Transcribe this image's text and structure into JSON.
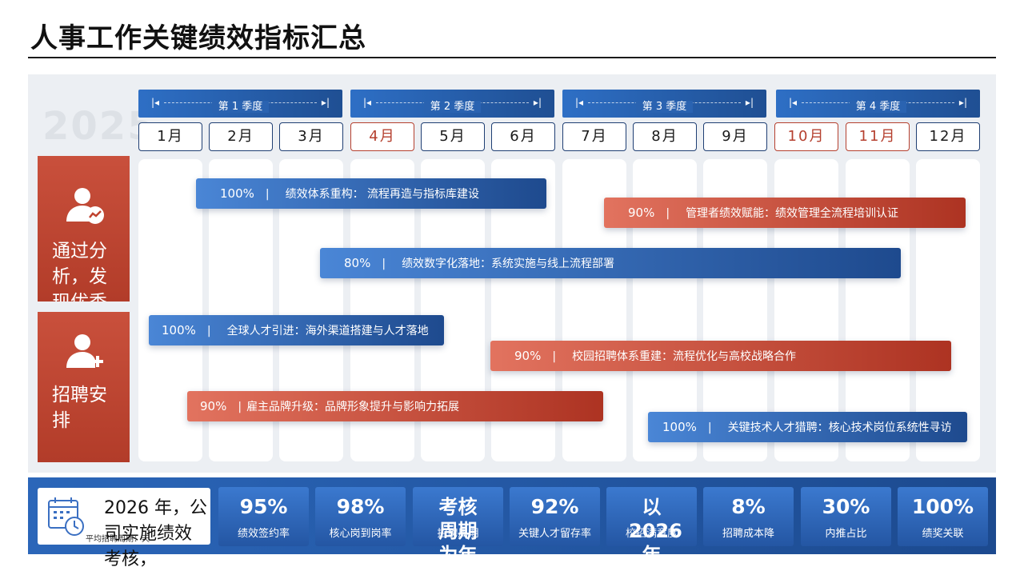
{
  "page_title": "人事工作关键绩效指标汇总",
  "year": "2025",
  "quarters": [
    "第 1 季度",
    "第 2 季度",
    "第 3 季度",
    "第 4 季度"
  ],
  "months": [
    "1月",
    "2月",
    "3月",
    "4月",
    "5月",
    "6月",
    "7月",
    "8月",
    "9月",
    "10月",
    "11月",
    "12月"
  ],
  "colors": {
    "blue": "#1f4f93",
    "red": "#b23c29",
    "red_month": "#b5402f"
  },
  "side_panels": {
    "performance": {
      "icon": "user-chart-icon",
      "text": "通过分析，发现优秀部门在创新能力和客户满意度方面表现突出，制"
    },
    "recruit": {
      "icon": "user-plus-icon",
      "text": "招聘安排"
    }
  },
  "bars": [
    {
      "pct": "100%",
      "sep": "|",
      "text": "绩效体系重构：  流程再造与指标库建设",
      "color": "blue"
    },
    {
      "pct": "90%",
      "sep": "|",
      "text": "管理者绩效赋能：绩效管理全流程培训认证",
      "color": "red"
    },
    {
      "pct": "80%",
      "sep": "|",
      "text": "绩效数字化落地：系统实施与线上流程部署",
      "color": "blue"
    },
    {
      "pct": "100%",
      "sep": "|",
      "text": "全球人才引进：海外渠道搭建与人才落地",
      "color": "blue"
    },
    {
      "pct": "90%",
      "sep": "|",
      "text": "校园招聘体系重建：流程优化与高校战略合作",
      "color": "red"
    },
    {
      "pct": "90%",
      "sep": "|",
      "text": "雇主品牌升级：品牌形象提升与影响力拓展",
      "color": "red"
    },
    {
      "pct": "100%",
      "sep": "|",
      "text": "关键技术人才猎聘：核心技术岗位系统性寻访",
      "color": "blue"
    }
  ],
  "footer": {
    "intro_icon": "calendar-clock-icon",
    "intro_small": "平均招聘周期：天",
    "intro_big": "2026 年，公司实施绩效考核，"
  },
  "kpis": [
    {
      "value": "95%",
      "label": "绩效签约率"
    },
    {
      "value": "98%",
      "label": "核心岗到岗率"
    },
    {
      "value": "考核周期为年",
      "label": "招聘周期"
    },
    {
      "value": "92%",
      "label": "关键人才留存率"
    },
    {
      "value": "以2026年",
      "label": "校招满意度"
    },
    {
      "value": "8%",
      "label": "招聘成本降"
    },
    {
      "value": "30%",
      "label": "内推占比"
    },
    {
      "value": "100%",
      "label": "绩奖关联"
    }
  ]
}
